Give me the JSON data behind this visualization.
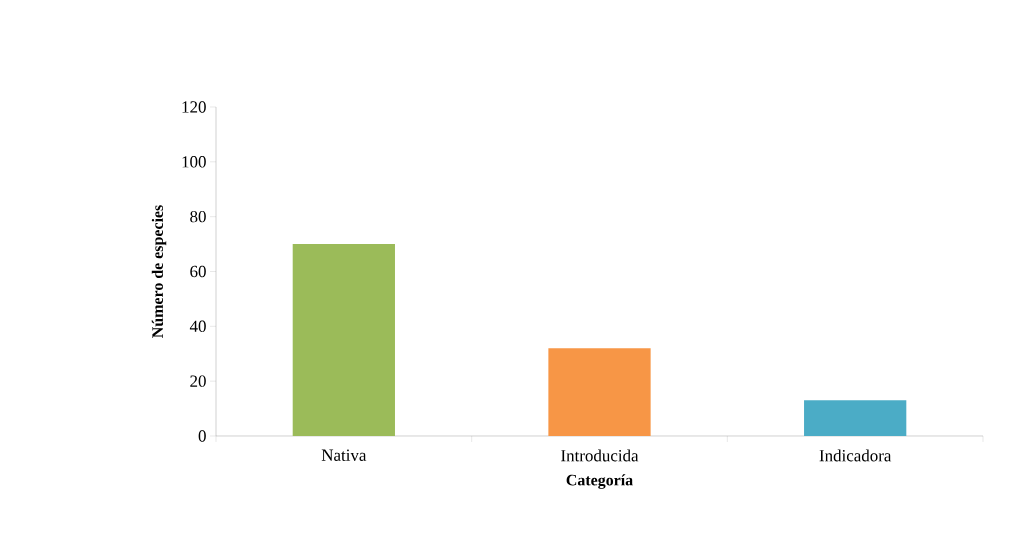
{
  "chart_data": {
    "type": "bar",
    "xlabel": "Categoría",
    "ylabel": "Número de especies",
    "categories": [
      "Nativa",
      "Introducida",
      "Indicadora"
    ],
    "values": [
      70,
      32,
      13
    ],
    "colors": [
      "#9bbb59",
      "#f79646",
      "#4bacc6"
    ],
    "ylim": [
      0,
      120
    ],
    "yticks": [
      0,
      20,
      40,
      60,
      80,
      100,
      120
    ],
    "grid": false
  }
}
